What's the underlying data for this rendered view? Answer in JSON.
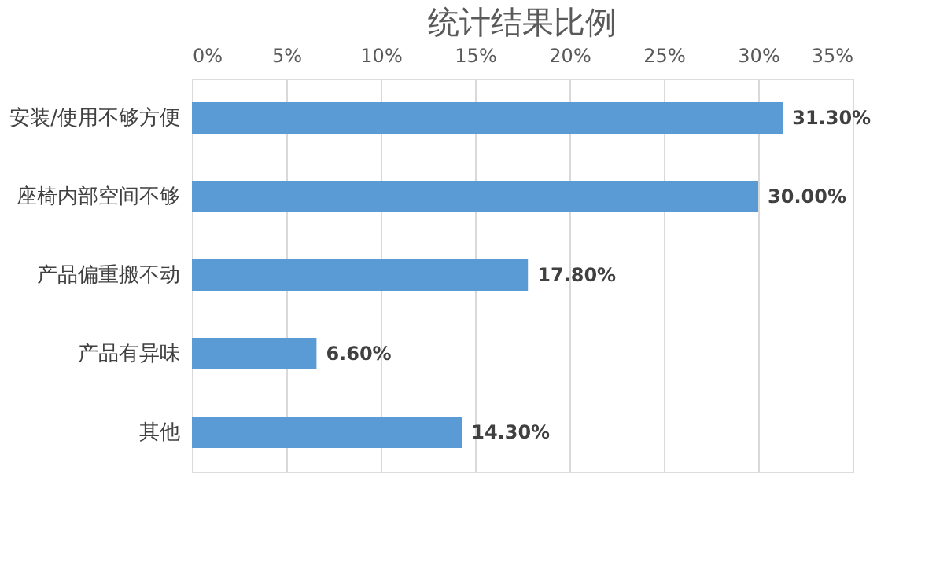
{
  "chart_data": {
    "type": "bar",
    "orientation": "horizontal",
    "title": "统计结果比例",
    "categories": [
      "安装/使用不够方便",
      "座椅内部空间不够",
      "产品偏重搬不动",
      "产品有异味",
      "其他"
    ],
    "values": [
      31.3,
      30.0,
      17.8,
      6.6,
      14.3
    ],
    "value_labels": [
      "31.30%",
      "30.00%",
      "17.80%",
      "6.60%",
      "14.30%"
    ],
    "color": "#5b9bd5",
    "xlim": [
      0,
      35
    ],
    "xticks": [
      {
        "value": 0,
        "label": "0%"
      },
      {
        "value": 5,
        "label": "5%"
      },
      {
        "value": 10,
        "label": "10%"
      },
      {
        "value": 15,
        "label": "15%"
      },
      {
        "value": 20,
        "label": "20%"
      },
      {
        "value": 25,
        "label": "25%"
      },
      {
        "value": 30,
        "label": "30%"
      },
      {
        "value": 35,
        "label": "35%"
      }
    ],
    "grid": "x"
  }
}
